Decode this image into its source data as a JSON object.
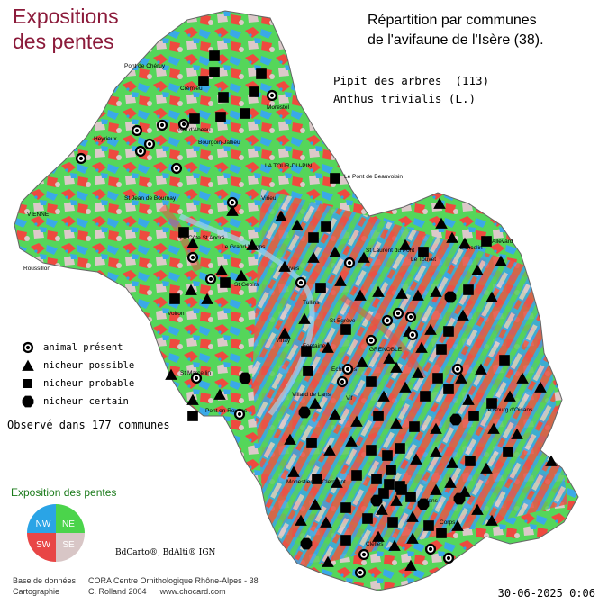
{
  "map_title": {
    "line1": "Expositions",
    "line2": "des pentes"
  },
  "repartition": {
    "line1": "Répartition par communes",
    "line2": "de l'avifaune de l'Isère (38)."
  },
  "species": {
    "common": "Pipit des arbres  (113)",
    "latin": "Anthus trivialis (L.)"
  },
  "legend": {
    "present": "animal présent",
    "possible": "nicheur possible",
    "probable": "nicheur probable",
    "certain": "nicheur certain"
  },
  "observed": "Observé dans 177 communes",
  "exposition": {
    "title": "Exposition des pentes",
    "nw": "NW",
    "ne": "NE",
    "sw": "SW",
    "se": "SE",
    "colors": {
      "nw": "#2aa4e6",
      "ne": "#4bd44b",
      "sw": "#e84646",
      "se": "#d8c6c6"
    }
  },
  "credit_ign": "BdCarto®, BdAlti® IGN",
  "footer": {
    "base_label": "Base de données",
    "base_value": "CORA Centre Ornithologique Rhône-Alpes - 38",
    "carto_label": "Cartographie",
    "carto_value": "C. Rolland 2004",
    "site": "www.chocard.com"
  },
  "date": "30-06-2025 0:06",
  "places": [
    "Pont de Chéruy",
    "Crémieu",
    "Morestel",
    "Isle d'Abeau",
    "Heyrieux",
    "Bourgoin-Jallieu",
    "LA TOUR-DU-PIN",
    "Le Pont de Beauvoisin",
    "VIENNE",
    "St Jean de Bournay",
    "Virieu",
    "La Côte St André",
    "Le Grand Lemps",
    "Roussillon",
    "St Geoirs",
    "Rives",
    "Voiron",
    "Tullins",
    "St Laurent du Pont",
    "Le Touvet",
    "Goncelin",
    "Allevard",
    "Vinay",
    "St Egrève",
    "GRENOBLE",
    "St Marcellin",
    "Pont en Royans",
    "Villard de Lans",
    "Vif",
    "Le Bourg d'Oisans",
    "Monestier de Clermont",
    "Mens",
    "Corps",
    "Clelles",
    "Fontaine",
    "Echirolles"
  ]
}
